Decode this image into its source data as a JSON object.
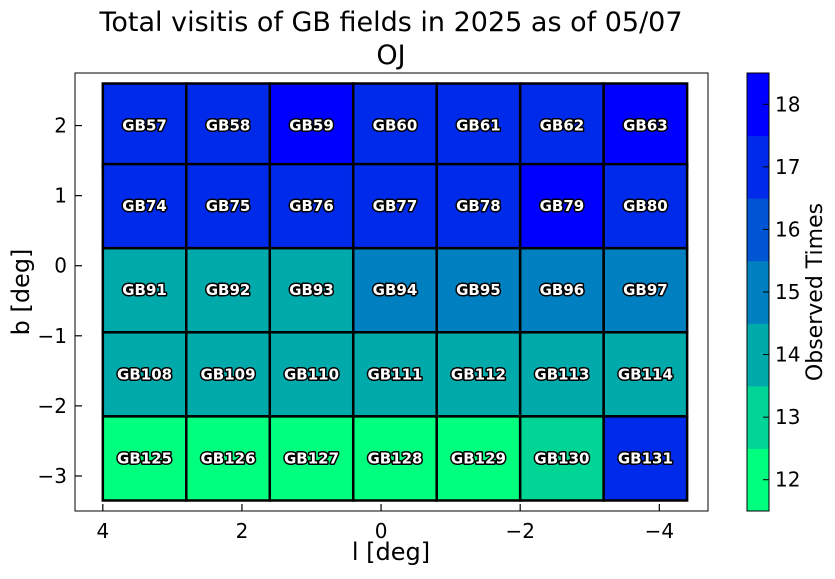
{
  "chart_data": {
    "type": "heatmap",
    "title": "Total visitis of GB fields in 2025 as of 05/07",
    "subtitle": "OJ",
    "xlabel": "l [deg]",
    "ylabel": "b [deg]",
    "xlim": [
      4.4,
      -4.7
    ],
    "ylim": [
      -3.5,
      2.75
    ],
    "x_ticks": [
      4,
      2,
      0,
      -2,
      -4
    ],
    "x_tick_labels": [
      "4",
      "2",
      "0",
      "−2",
      "−4"
    ],
    "y_ticks": [
      2,
      1,
      0,
      -1,
      -2,
      -3
    ],
    "y_tick_labels": [
      "2",
      "1",
      "0",
      "−1",
      "−2",
      "−3"
    ],
    "grid": false,
    "colorbar": {
      "label": "Observed Times",
      "range": [
        11.5,
        18.5
      ],
      "ticks": [
        12,
        13,
        14,
        15,
        16,
        17,
        18
      ],
      "colors": [
        "#00ff7f",
        "#00d596",
        "#00aaaa",
        "#0080c0",
        "#0055d5",
        "#002aea",
        "#0000ff"
      ]
    },
    "fields": [
      {
        "name": "GB57",
        "l": 3.4,
        "b": 2.0,
        "value": 17
      },
      {
        "name": "GB58",
        "l": 2.2,
        "b": 2.0,
        "value": 17
      },
      {
        "name": "GB59",
        "l": 1.0,
        "b": 2.0,
        "value": 18
      },
      {
        "name": "GB60",
        "l": -0.2,
        "b": 2.0,
        "value": 17
      },
      {
        "name": "GB61",
        "l": -1.4,
        "b": 2.0,
        "value": 17
      },
      {
        "name": "GB62",
        "l": -2.6,
        "b": 2.0,
        "value": 17
      },
      {
        "name": "GB63",
        "l": -3.8,
        "b": 2.0,
        "value": 17.5
      },
      {
        "name": "GB74",
        "l": 3.4,
        "b": 0.85,
        "value": 17
      },
      {
        "name": "GB75",
        "l": 2.2,
        "b": 0.85,
        "value": 17
      },
      {
        "name": "GB76",
        "l": 1.0,
        "b": 0.85,
        "value": 17
      },
      {
        "name": "GB77",
        "l": -0.2,
        "b": 0.85,
        "value": 17
      },
      {
        "name": "GB78",
        "l": -1.4,
        "b": 0.85,
        "value": 17
      },
      {
        "name": "GB79",
        "l": -2.6,
        "b": 0.85,
        "value": 18
      },
      {
        "name": "GB80",
        "l": -3.8,
        "b": 0.85,
        "value": 17
      },
      {
        "name": "GB91",
        "l": 3.4,
        "b": -0.35,
        "value": 14
      },
      {
        "name": "GB92",
        "l": 2.2,
        "b": -0.35,
        "value": 14
      },
      {
        "name": "GB93",
        "l": 1.0,
        "b": -0.35,
        "value": 14
      },
      {
        "name": "GB94",
        "l": -0.2,
        "b": -0.35,
        "value": 15
      },
      {
        "name": "GB95",
        "l": -1.4,
        "b": -0.35,
        "value": 15
      },
      {
        "name": "GB96",
        "l": -2.6,
        "b": -0.35,
        "value": 15
      },
      {
        "name": "GB97",
        "l": -3.8,
        "b": -0.35,
        "value": 15
      },
      {
        "name": "GB108",
        "l": 3.4,
        "b": -1.55,
        "value": 14
      },
      {
        "name": "GB109",
        "l": 2.2,
        "b": -1.55,
        "value": 14
      },
      {
        "name": "GB110",
        "l": 1.0,
        "b": -1.55,
        "value": 14
      },
      {
        "name": "GB111",
        "l": -0.2,
        "b": -1.55,
        "value": 14
      },
      {
        "name": "GB112",
        "l": -1.4,
        "b": -1.55,
        "value": 14
      },
      {
        "name": "GB113",
        "l": -2.6,
        "b": -1.55,
        "value": 14
      },
      {
        "name": "GB114",
        "l": -3.8,
        "b": -1.55,
        "value": 14
      },
      {
        "name": "GB125",
        "l": 3.4,
        "b": -2.75,
        "value": 12
      },
      {
        "name": "GB126",
        "l": 2.2,
        "b": -2.75,
        "value": 12
      },
      {
        "name": "GB127",
        "l": 1.0,
        "b": -2.75,
        "value": 12
      },
      {
        "name": "GB128",
        "l": -0.2,
        "b": -2.75,
        "value": 12
      },
      {
        "name": "GB129",
        "l": -1.4,
        "b": -2.75,
        "value": 12
      },
      {
        "name": "GB130",
        "l": -2.6,
        "b": -2.75,
        "value": 13
      },
      {
        "name": "GB131",
        "l": -3.8,
        "b": -2.75,
        "value": 17
      }
    ]
  }
}
